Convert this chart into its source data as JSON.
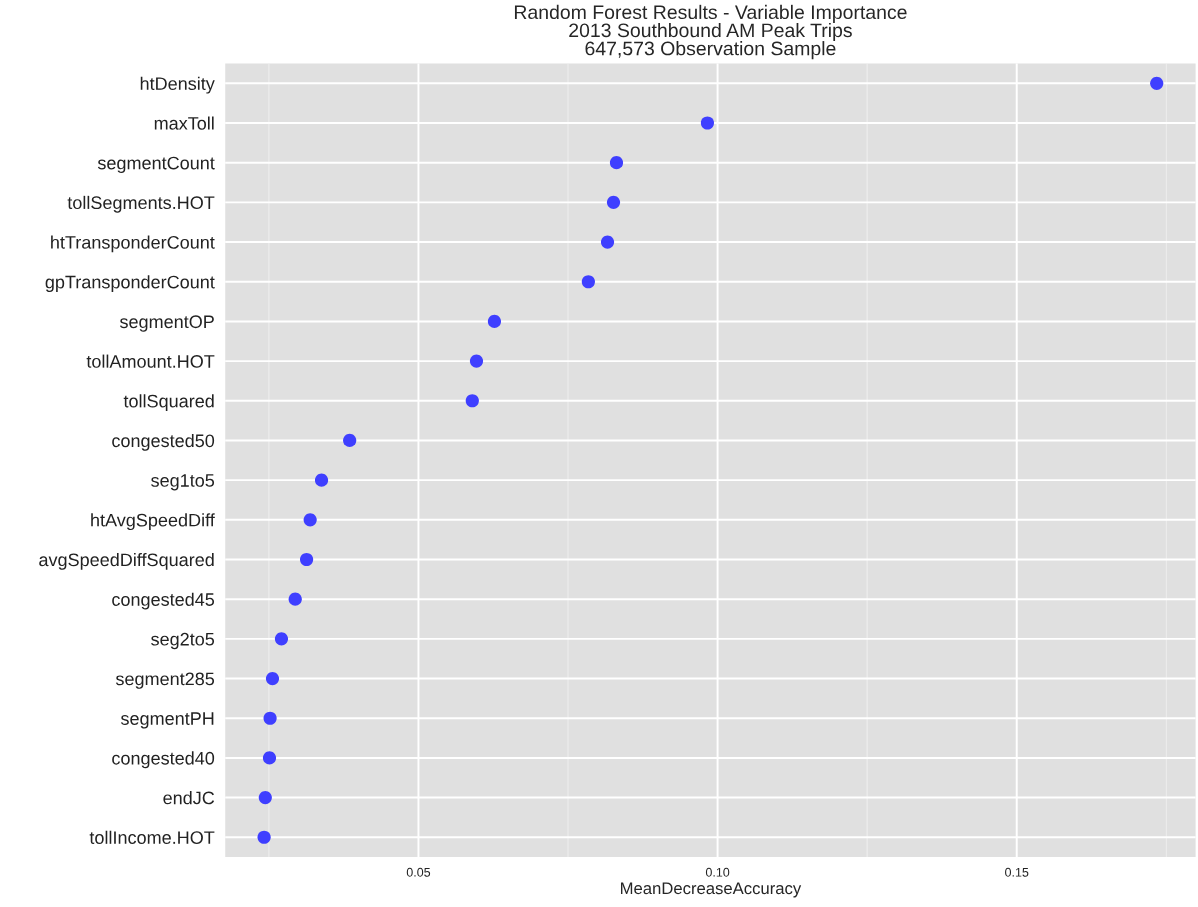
{
  "chart_data": {
    "type": "scatter",
    "title": "Random Forest Results - Variable Importance\n2013 Southbound AM Peak Trips\n647,573 Observation Sample",
    "xlabel": "MeanDecreaseAccuracy",
    "orientation": "horizontal",
    "categories": [
      "htDensity",
      "maxToll",
      "segmentCount",
      "tollSegments.HOT",
      "htTransponderCount",
      "gpTransponderCount",
      "segmentOP",
      "tollAmount.HOT",
      "tollSquared",
      "congested50",
      "seg1to5",
      "htAvgSpeedDiff",
      "avgSpeedDiffSquared",
      "congested45",
      "seg2to5",
      "segment285",
      "segmentPH",
      "congested40",
      "endJC",
      "tollIncome.HOT"
    ],
    "values": [
      0.1734,
      0.0983,
      0.0831,
      0.0826,
      0.0816,
      0.0784,
      0.0627,
      0.0597,
      0.059,
      0.0385,
      0.0338,
      0.0319,
      0.0313,
      0.0294,
      0.0271,
      0.0256,
      0.0252,
      0.0251,
      0.0244,
      0.0242
    ],
    "color": "#3f3fff",
    "marker": "circle",
    "xlim": [
      0.0177,
      0.1799
    ],
    "xticks": [
      0.05,
      {
        "value": 0.1,
        "label": "0.10"
      },
      0.15
    ],
    "grid": true
  }
}
